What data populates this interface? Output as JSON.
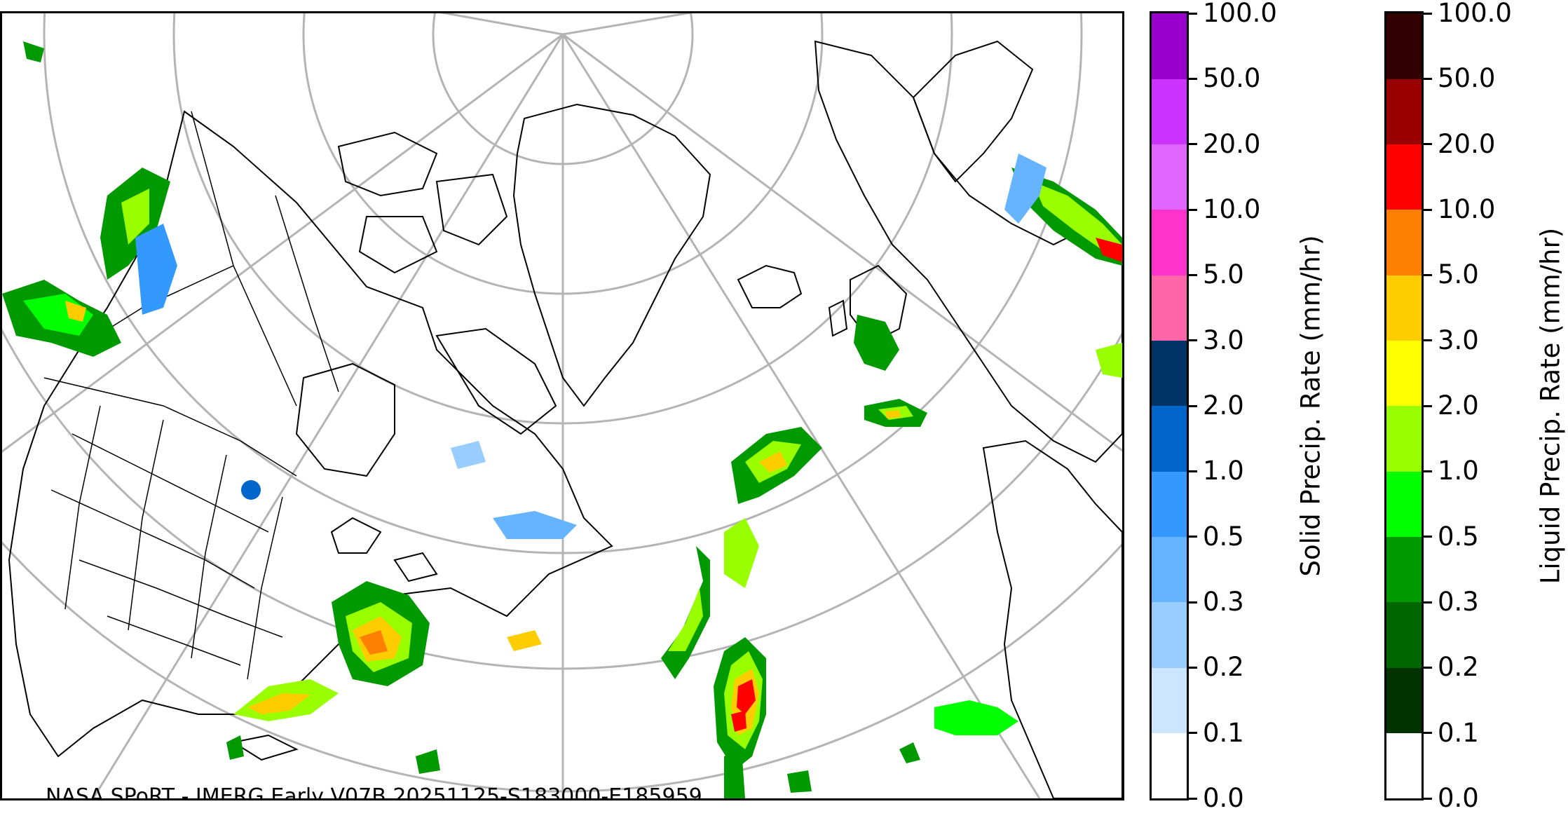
{
  "map": {
    "credit": "NASA SPoRT - IMERG Early V07B 20251125-S183000-E185959",
    "projection_center": "North Pole",
    "graticule_color": "#b4b4b4",
    "coastline_color": "#000000"
  },
  "solid_colorbar": {
    "title": "Solid Precip. Rate (mm/hr)",
    "bounds": [
      "0.0",
      "0.1",
      "0.2",
      "0.3",
      "0.5",
      "1.0",
      "2.0",
      "3.0",
      "5.0",
      "10.0",
      "20.0",
      "50.0",
      "100.0"
    ],
    "colors": [
      "#ffffff",
      "#cce6ff",
      "#99ccff",
      "#66b3ff",
      "#3399ff",
      "#0066cc",
      "#003366",
      "#ff66aa",
      "#ff33cc",
      "#e066ff",
      "#cc33ff",
      "#9900cc"
    ]
  },
  "liquid_colorbar": {
    "title": "Liquid Precip. Rate (mm/hr)",
    "bounds": [
      "0.0",
      "0.1",
      "0.2",
      "0.3",
      "0.5",
      "1.0",
      "2.0",
      "3.0",
      "5.0",
      "10.0",
      "20.0",
      "50.0",
      "100.0"
    ],
    "colors": [
      "#ffffff",
      "#003300",
      "#006600",
      "#009900",
      "#00ff00",
      "#99ff00",
      "#ffff00",
      "#ffcc00",
      "#ff8000",
      "#ff0000",
      "#990000",
      "#330000"
    ]
  }
}
